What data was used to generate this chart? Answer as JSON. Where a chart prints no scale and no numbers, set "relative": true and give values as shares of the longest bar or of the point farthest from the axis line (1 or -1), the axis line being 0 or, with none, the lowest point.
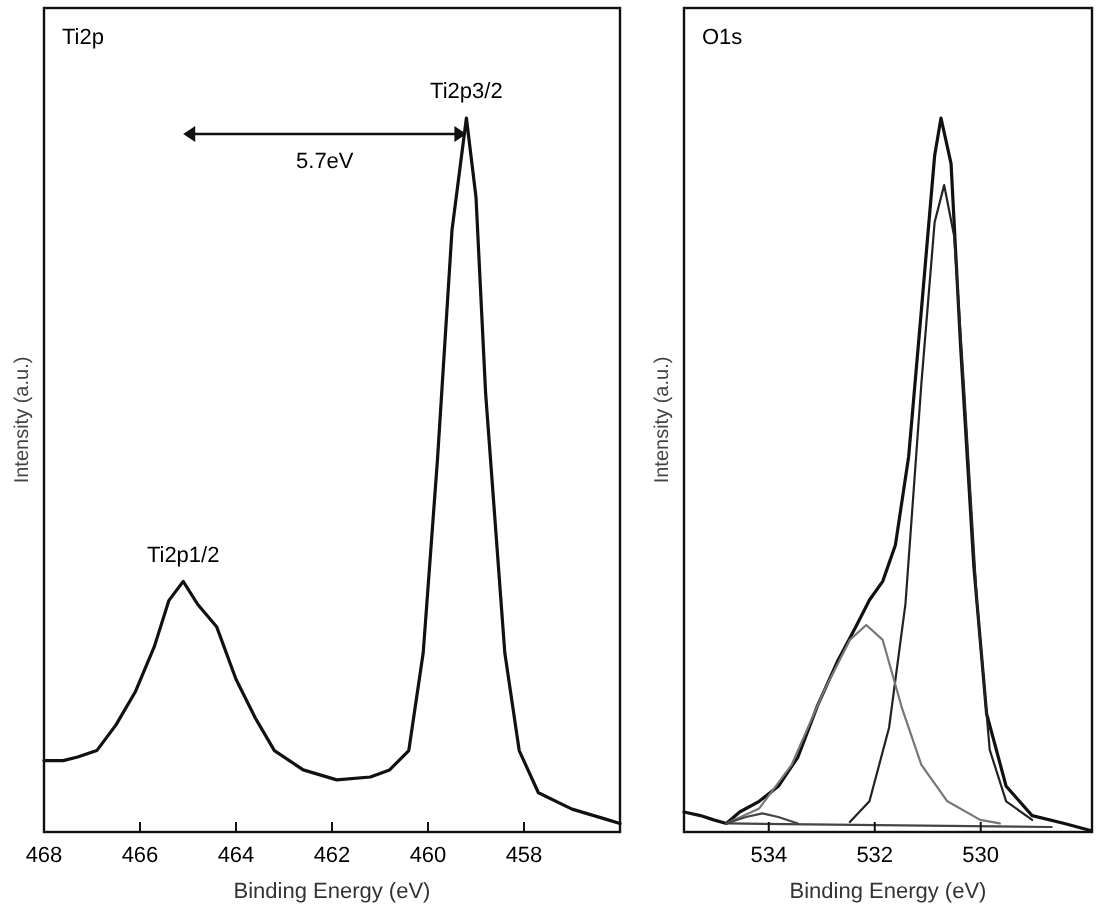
{
  "chart_data": [
    {
      "type": "line",
      "title": "Ti2p",
      "xlabel": "Binding Energy (eV)",
      "ylabel": "Intensity (a.u.)",
      "relative": true,
      "xlim": [
        468,
        456
      ],
      "xticks": [
        468,
        466,
        464,
        462,
        460,
        458
      ],
      "annotations": [
        {
          "text": "Ti2p3/2",
          "x": 459.2,
          "y": 1.0
        },
        {
          "text": "Ti2p1/2",
          "x": 465.1,
          "y": 0.35
        },
        "5.7eV"
      ],
      "series": [
        {
          "color": "#111111",
          "x": [
            468.0,
            467.6,
            467.3,
            466.9,
            466.5,
            466.1,
            465.7,
            465.4,
            465.1,
            464.8,
            464.4,
            464.0,
            463.6,
            463.2,
            462.6,
            461.9,
            461.2,
            460.8,
            460.4,
            460.1,
            459.8,
            459.5,
            459.2,
            459.0,
            458.8,
            458.4,
            458.1,
            457.7,
            457.0,
            456.3,
            456.0
          ],
          "values": [
            0.1,
            0.1,
            0.105,
            0.114,
            0.15,
            0.196,
            0.26,
            0.324,
            0.351,
            0.319,
            0.287,
            0.214,
            0.16,
            0.114,
            0.087,
            0.073,
            0.077,
            0.087,
            0.114,
            0.251,
            0.524,
            0.843,
            1.0,
            0.889,
            0.615,
            0.251,
            0.114,
            0.055,
            0.032,
            0.018,
            0.012
          ]
        }
      ]
    },
    {
      "type": "line",
      "title": "O1s",
      "xlabel": "Binding Energy (eV)",
      "ylabel": "Intensity (a.u.)",
      "relative": true,
      "xlim": [
        535.6,
        527.9
      ],
      "xticks": [
        534,
        532,
        530
      ],
      "series": [
        {
          "color": "#111111",
          "x": [
            535.6,
            535.29,
            535.04,
            534.8,
            534.55,
            534.18,
            533.82,
            533.45,
            533.08,
            532.71,
            532.34,
            532.1,
            531.85,
            531.61,
            531.36,
            531.12,
            530.87,
            530.75,
            530.56,
            530.38,
            530.13,
            529.89,
            529.52,
            529.03,
            528.42,
            527.93
          ],
          "values": [
            0.028,
            0.023,
            0.017,
            0.012,
            0.028,
            0.043,
            0.064,
            0.105,
            0.177,
            0.238,
            0.29,
            0.325,
            0.351,
            0.402,
            0.526,
            0.731,
            0.947,
            1.0,
            0.936,
            0.68,
            0.372,
            0.166,
            0.064,
            0.023,
            0.012,
            0.002
          ]
        },
        {
          "color": "#222222",
          "x": [
            532.47,
            532.1,
            531.73,
            531.42,
            531.12,
            530.87,
            530.69,
            530.5,
            530.32,
            530.07,
            529.83,
            529.52,
            529.03
          ],
          "values": [
            0.014,
            0.043,
            0.146,
            0.32,
            0.628,
            0.854,
            0.906,
            0.834,
            0.628,
            0.32,
            0.115,
            0.043,
            0.017
          ]
        },
        {
          "color": "#777777",
          "x": [
            534.8,
            534.18,
            533.57,
            532.96,
            532.47,
            532.16,
            531.85,
            531.48,
            531.12,
            530.63,
            530.01,
            529.64
          ],
          "values": [
            0.012,
            0.033,
            0.094,
            0.197,
            0.269,
            0.29,
            0.269,
            0.172,
            0.094,
            0.043,
            0.017,
            0.012
          ]
        },
        {
          "color": "#444444",
          "x": [
            534.8,
            534.43,
            534.12,
            533.82,
            533.45
          ],
          "values": [
            0.012,
            0.021,
            0.026,
            0.021,
            0.012
          ]
        },
        {
          "color": "#444444",
          "x": [
            534.8,
            528.66
          ],
          "values": [
            0.012,
            0.007
          ]
        }
      ]
    }
  ]
}
